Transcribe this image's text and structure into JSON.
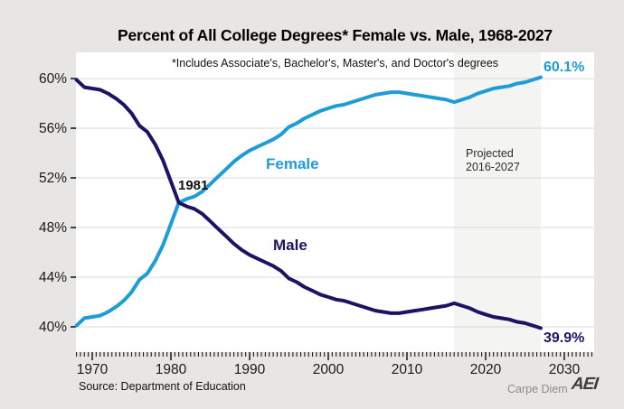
{
  "title": "Percent of All College Degrees* Female vs. Male, 1968-2027",
  "subtitle": "*Includes Associate's, Bachelor's, Master's, and Doctor's degrees",
  "source": "Source: Department of Education",
  "branding": {
    "name": "Carpe Diem",
    "logo": "AEI"
  },
  "annotations": {
    "crossing_year": "1981",
    "female_label": "Female",
    "male_label": "Male",
    "female_end_value": "60.1%",
    "male_end_value": "39.9%",
    "projected_line1": "Projected",
    "projected_line2": "2016-2027"
  },
  "colors": {
    "female": "#1d9cd8",
    "male": "#1b1464",
    "background": "#e7e6e4",
    "panel": "#ffffff",
    "projected_band": "#f4f4f2",
    "gridline": "#d8d8d8",
    "tick": "#1a1a1a"
  },
  "chart_data": {
    "type": "line",
    "title": "Percent of All College Degrees* Female vs. Male, 1968-2027",
    "xlabel": "",
    "ylabel": "",
    "grid": "horizontal",
    "legend_position": "inline-labels",
    "xlim": [
      1968,
      2033.8
    ],
    "ylim": [
      39.6,
      62.2
    ],
    "minor_tick_step_years": 0.5,
    "x_ticks": [
      1970,
      1980,
      1990,
      2000,
      2010,
      2020,
      2030
    ],
    "y_ticks": [
      {
        "value": 60,
        "label": "60%"
      },
      {
        "value": 56,
        "label": "56%"
      },
      {
        "value": 52,
        "label": "52%"
      },
      {
        "value": 48,
        "label": "48%"
      },
      {
        "value": 44,
        "label": "44%"
      },
      {
        "value": 40,
        "label": "40%"
      }
    ],
    "projected_region": {
      "start": 2016,
      "end": 2027
    },
    "crossing_point": {
      "year": 1981,
      "value": 50.0
    },
    "years": [
      1968,
      1969,
      1970,
      1971,
      1972,
      1973,
      1974,
      1975,
      1976,
      1977,
      1978,
      1979,
      1980,
      1981,
      1982,
      1983,
      1984,
      1985,
      1986,
      1987,
      1988,
      1989,
      1990,
      1991,
      1992,
      1993,
      1994,
      1995,
      1996,
      1997,
      1998,
      1999,
      2000,
      2001,
      2002,
      2003,
      2004,
      2005,
      2006,
      2007,
      2008,
      2009,
      2010,
      2011,
      2012,
      2013,
      2014,
      2015,
      2016,
      2017,
      2018,
      2019,
      2020,
      2021,
      2022,
      2023,
      2024,
      2025,
      2026,
      2027
    ],
    "series": [
      {
        "name": "Female",
        "color_key": "female",
        "end_value": 60.1,
        "values": [
          40.1,
          40.7,
          40.8,
          40.9,
          41.2,
          41.6,
          42.1,
          42.8,
          43.8,
          44.3,
          45.3,
          46.6,
          48.3,
          50.0,
          50.3,
          50.5,
          50.9,
          51.5,
          52.1,
          52.7,
          53.3,
          53.8,
          54.2,
          54.5,
          54.8,
          55.1,
          55.5,
          56.1,
          56.4,
          56.8,
          57.1,
          57.4,
          57.6,
          57.8,
          57.9,
          58.1,
          58.3,
          58.5,
          58.7,
          58.8,
          58.9,
          58.9,
          58.8,
          58.7,
          58.6,
          58.5,
          58.4,
          58.3,
          58.1,
          58.3,
          58.5,
          58.8,
          59.0,
          59.2,
          59.3,
          59.4,
          59.6,
          59.7,
          59.9,
          60.1
        ]
      },
      {
        "name": "Male",
        "color_key": "male",
        "end_value": 39.9,
        "values": [
          59.9,
          59.3,
          59.2,
          59.1,
          58.8,
          58.4,
          57.9,
          57.2,
          56.2,
          55.7,
          54.7,
          53.4,
          51.7,
          50.0,
          49.7,
          49.5,
          49.1,
          48.5,
          47.9,
          47.3,
          46.7,
          46.2,
          45.8,
          45.5,
          45.2,
          44.9,
          44.5,
          43.9,
          43.6,
          43.2,
          42.9,
          42.6,
          42.4,
          42.2,
          42.1,
          41.9,
          41.7,
          41.5,
          41.3,
          41.2,
          41.1,
          41.1,
          41.2,
          41.3,
          41.4,
          41.5,
          41.6,
          41.7,
          41.9,
          41.7,
          41.5,
          41.2,
          41.0,
          40.8,
          40.7,
          40.6,
          40.4,
          40.3,
          40.1,
          39.9
        ]
      }
    ]
  }
}
